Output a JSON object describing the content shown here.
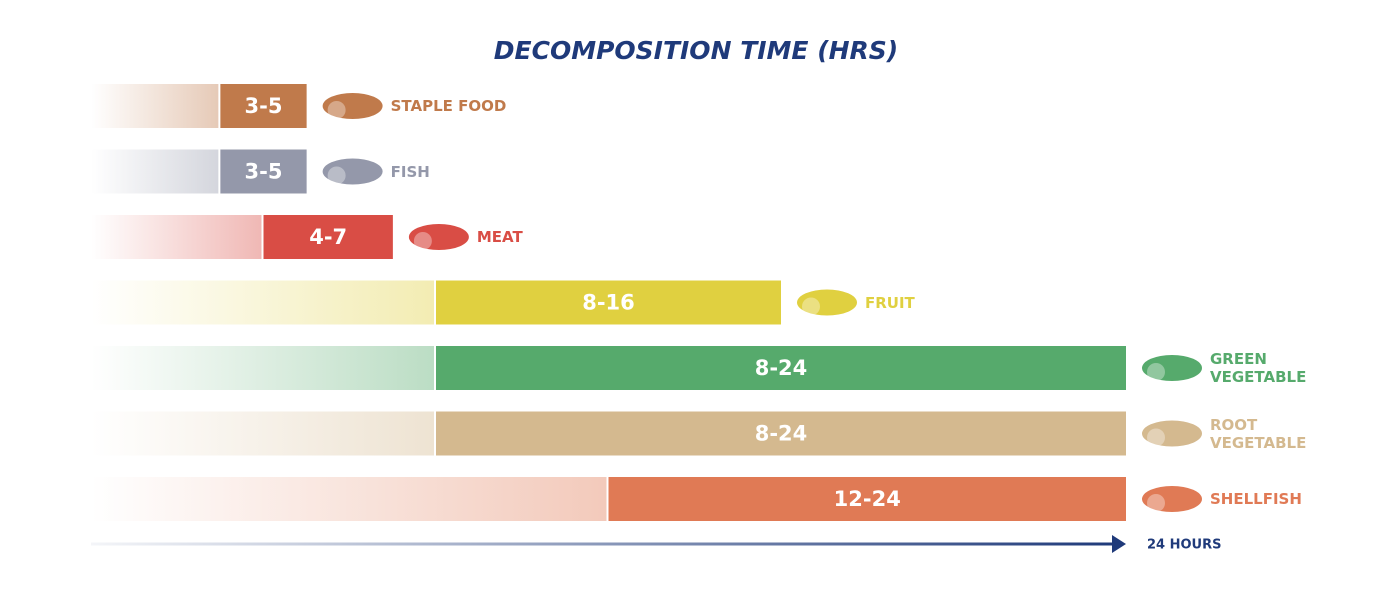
{
  "chart_data": {
    "type": "range-bar",
    "title": "DECOMPOSITION TIME (HRS)",
    "categories": [
      "STAPLE FOOD",
      "FISH",
      "MEAT",
      "FRUIT",
      "GREEN VEGETABLE",
      "ROOT VEGETABLE",
      "SHELLFISH"
    ],
    "low": [
      3,
      3,
      4,
      8,
      8,
      8,
      12
    ],
    "high": [
      5,
      5,
      7,
      16,
      24,
      24,
      24
    ],
    "value_labels": [
      "3-5",
      "3-5",
      "4-7",
      "8-16",
      "8-24",
      "8-24",
      "12-24"
    ],
    "colors": [
      "#c07a4b",
      "#9498aa",
      "#d94d45",
      "#e0d040",
      "#56aa6c",
      "#d4b98f",
      "#e07a55"
    ],
    "xlim": [
      0,
      24
    ],
    "xticks": [
      {
        "value": 24,
        "label": "24 HOURS"
      }
    ],
    "axis_color": "#1f3a7a"
  }
}
